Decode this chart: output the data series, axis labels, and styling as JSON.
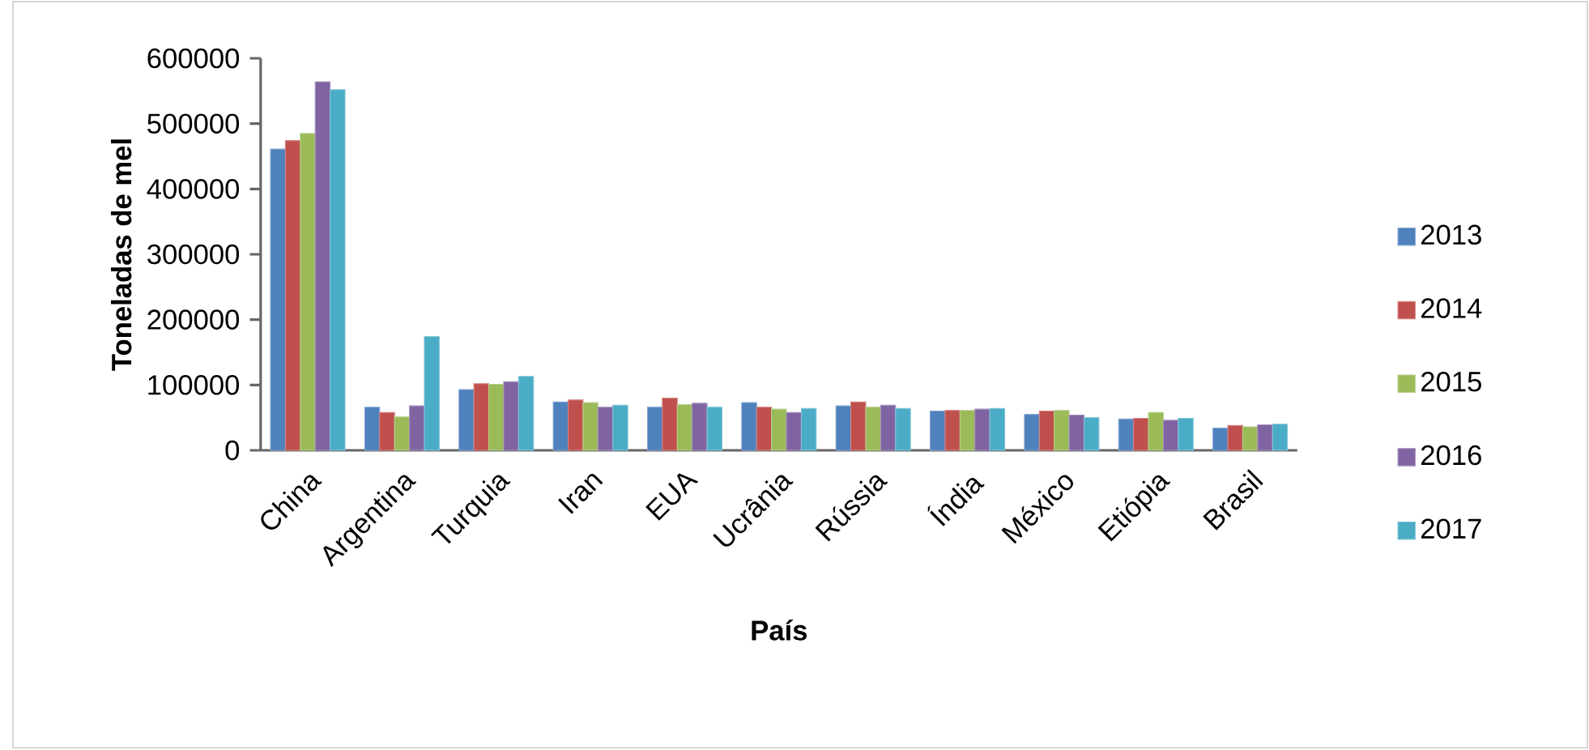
{
  "chart_data": {
    "type": "bar",
    "xlabel": "País",
    "ylabel": "Toneladas de mel",
    "categories": [
      "China",
      "Argentina",
      "Turquia",
      "Iran",
      "EUA",
      "Ucrânia",
      "Rússia",
      "Índia",
      "México",
      "Etiópia",
      "Brasil"
    ],
    "series": [
      {
        "name": "2013",
        "color": "#4f81bd",
        "values": [
          461000,
          66000,
          93000,
          74000,
          66000,
          73000,
          68000,
          60000,
          55000,
          48000,
          34000
        ]
      },
      {
        "name": "2014",
        "color": "#c0504d",
        "values": [
          474000,
          58000,
          102000,
          77000,
          80000,
          66000,
          74000,
          61000,
          60000,
          49000,
          38000
        ]
      },
      {
        "name": "2015",
        "color": "#9bbb59",
        "values": [
          485000,
          51000,
          101000,
          73000,
          70000,
          63000,
          66000,
          61000,
          61000,
          58000,
          36000
        ]
      },
      {
        "name": "2016",
        "color": "#8064a2",
        "values": [
          564000,
          68000,
          105000,
          66000,
          72000,
          58000,
          69000,
          63000,
          54000,
          46000,
          39000
        ]
      },
      {
        "name": "2017",
        "color": "#4bacc6",
        "values": [
          552000,
          174000,
          113000,
          69000,
          66000,
          64000,
          64000,
          64000,
          50000,
          49000,
          40000
        ]
      }
    ],
    "ylim": [
      0,
      600000
    ],
    "yticks": [
      0,
      100000,
      200000,
      300000,
      400000,
      500000,
      600000
    ],
    "grid": false,
    "legend": "right"
  }
}
